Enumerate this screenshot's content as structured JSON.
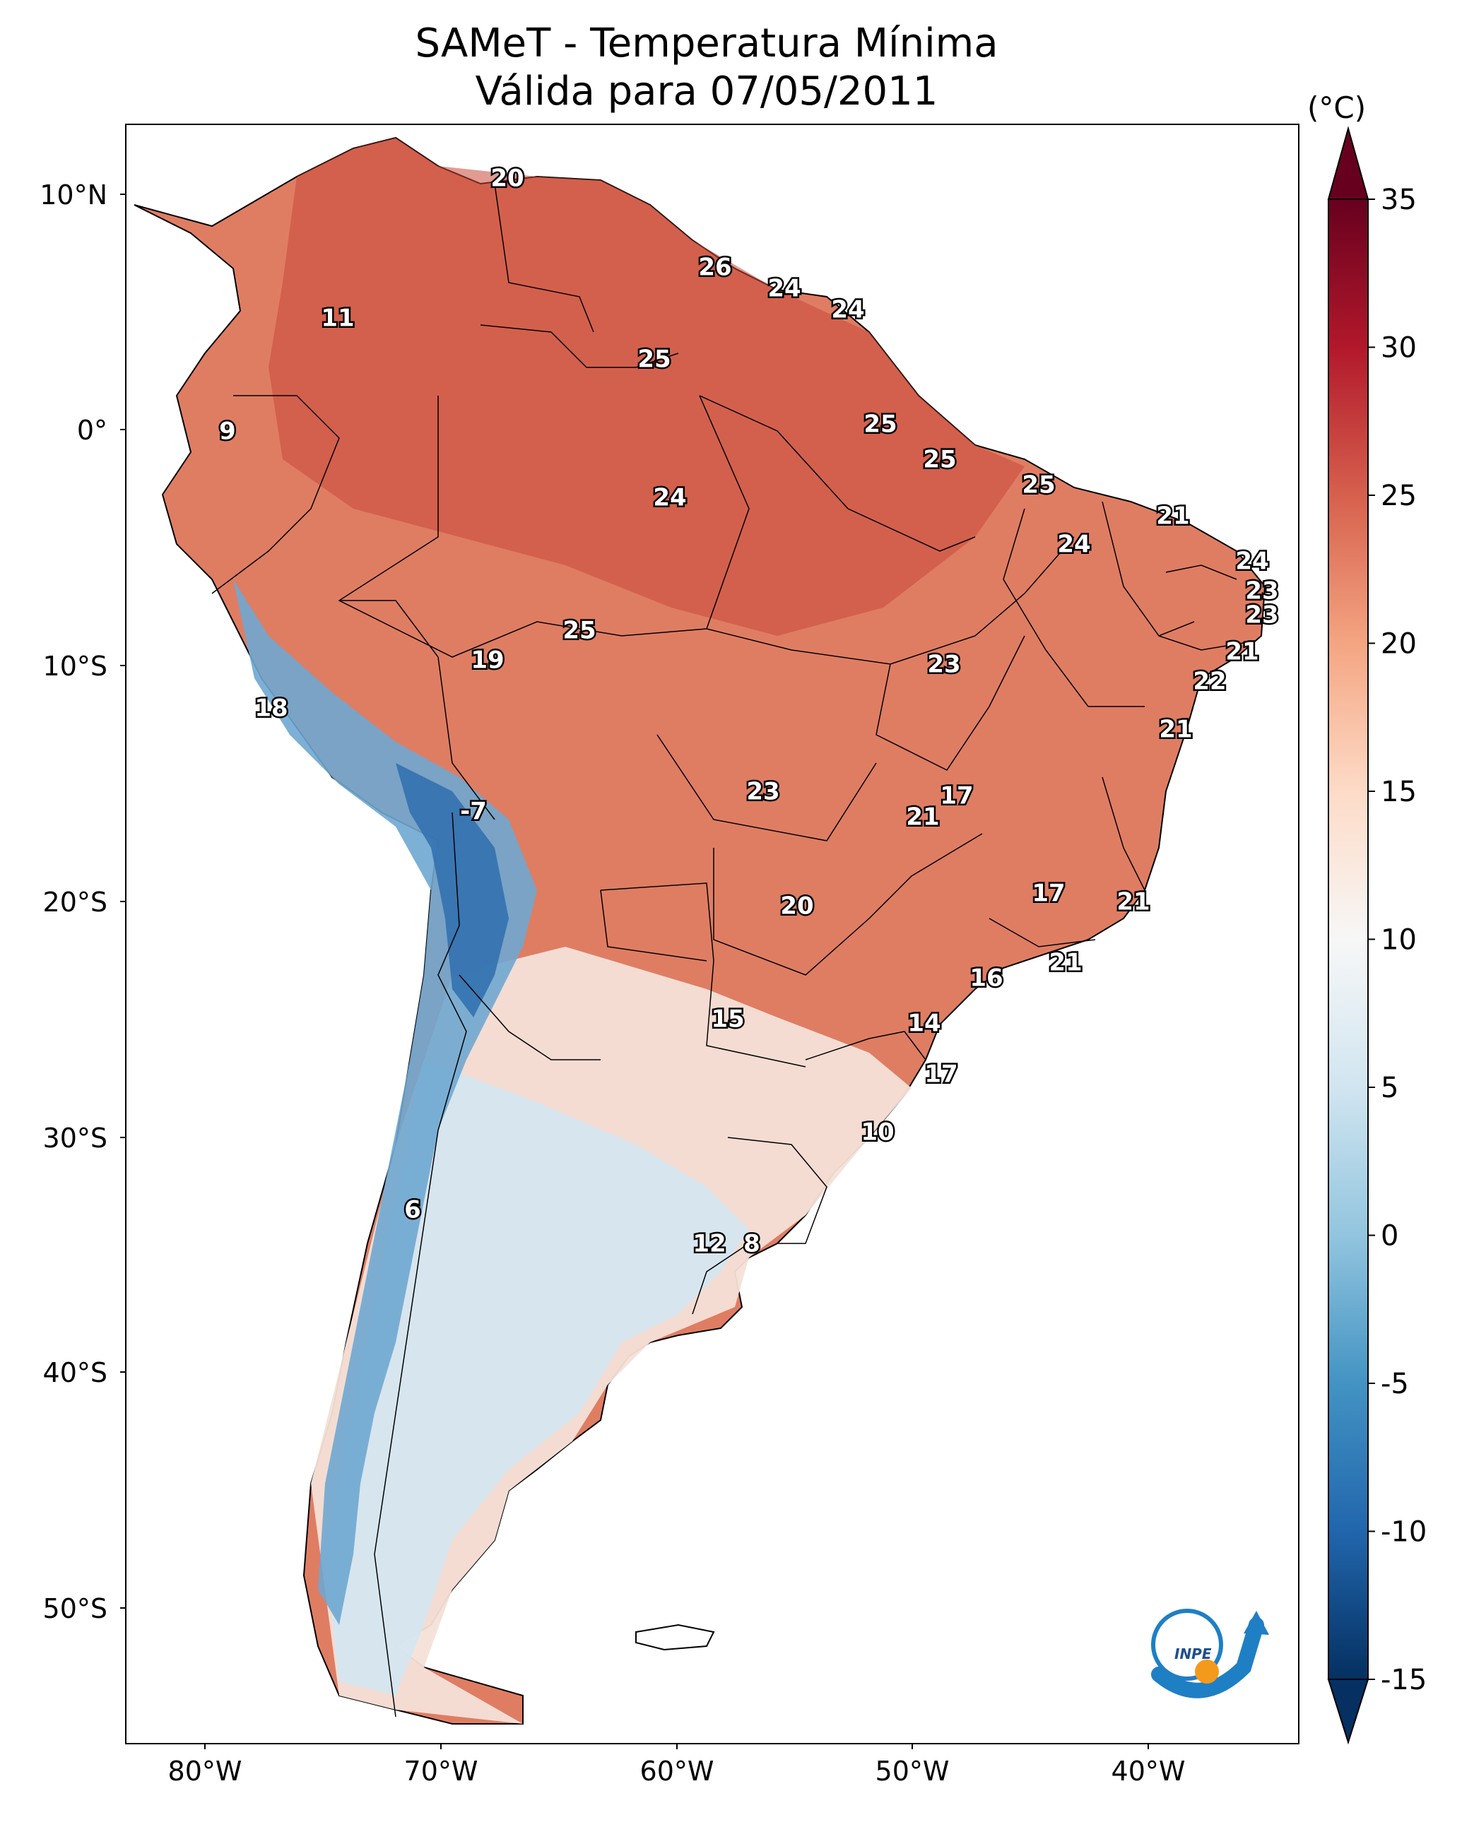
{
  "title": {
    "line1": "SAMeT - Temperatura Mínima",
    "line2": "Válida para 07/05/2011"
  },
  "colorbar": {
    "unit": "(°C)",
    "ticks": [
      "35",
      "30",
      "25",
      "20",
      "15",
      "10",
      "5",
      "0",
      "-5",
      "-10",
      "-15"
    ],
    "range": [
      -15,
      35
    ],
    "extend": "both",
    "colormap": "RdBu_r",
    "colors": [
      "#053061",
      "#2166ac",
      "#4393c3",
      "#92c5de",
      "#d1e5f0",
      "#f7f7f7",
      "#fddbc7",
      "#f4a582",
      "#d6604d",
      "#b2182b",
      "#67001f"
    ]
  },
  "axes": {
    "lat_ticks": [
      "10°N",
      "0°",
      "10°S",
      "20°S",
      "30°S",
      "40°S",
      "50°S"
    ],
    "lon_ticks": [
      "80°W",
      "70°W",
      "60°W",
      "50°W",
      "40°W"
    ]
  },
  "labels": [
    {
      "text": "20"
    },
    {
      "text": "26"
    },
    {
      "text": "24"
    },
    {
      "text": "24"
    },
    {
      "text": "11"
    },
    {
      "text": "25"
    },
    {
      "text": "9"
    },
    {
      "text": "25"
    },
    {
      "text": "25"
    },
    {
      "text": "25"
    },
    {
      "text": "24"
    },
    {
      "text": "21"
    },
    {
      "text": "24"
    },
    {
      "text": "24"
    },
    {
      "text": "23"
    },
    {
      "text": "23"
    },
    {
      "text": "25"
    },
    {
      "text": "19"
    },
    {
      "text": "23"
    },
    {
      "text": "21"
    },
    {
      "text": "22"
    },
    {
      "text": "18"
    },
    {
      "text": "21"
    },
    {
      "text": "-7"
    },
    {
      "text": "23"
    },
    {
      "text": "17"
    },
    {
      "text": "21"
    },
    {
      "text": "20"
    },
    {
      "text": "17"
    },
    {
      "text": "21"
    },
    {
      "text": "16"
    },
    {
      "text": "21"
    },
    {
      "text": "15"
    },
    {
      "text": "14"
    },
    {
      "text": "17"
    },
    {
      "text": "10"
    },
    {
      "text": "6"
    },
    {
      "text": "12"
    },
    {
      "text": "8"
    }
  ],
  "logo": {
    "text": "INPE"
  }
}
